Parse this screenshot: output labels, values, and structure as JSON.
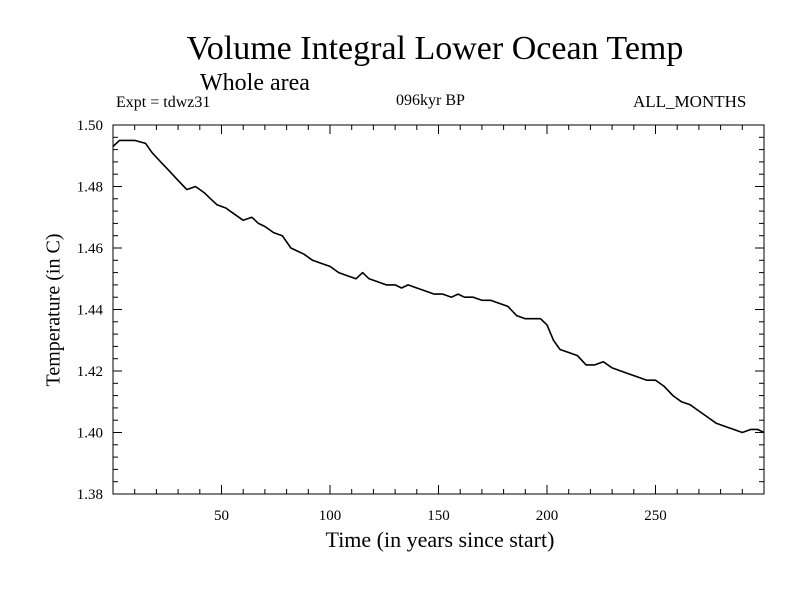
{
  "header": {
    "expt": "Expt = tdwz31",
    "period": "096kyr BP",
    "months": "ALL_MONTHS"
  },
  "chart_data": {
    "type": "line",
    "title": "Volume Integral Lower Ocean Temp",
    "subtitle": "Whole area",
    "xlabel": "Time (in years since start)",
    "ylabel": "Temperature (in C)",
    "xlim": [
      0,
      300
    ],
    "ylim": [
      1.38,
      1.5
    ],
    "xticks": [
      50,
      100,
      150,
      200,
      250
    ],
    "yticks": [
      1.38,
      1.4,
      1.42,
      1.44,
      1.46,
      1.48,
      1.5
    ],
    "ytick_labels": [
      "1.38",
      "1.40",
      "1.42",
      "1.44",
      "1.46",
      "1.48",
      "1.50"
    ],
    "grid": false,
    "series": [
      {
        "name": "Volume integral lower ocean temperature",
        "x": [
          0,
          3,
          6,
          10,
          15,
          18,
          22,
          26,
          30,
          34,
          38,
          42,
          45,
          48,
          52,
          56,
          60,
          64,
          67,
          70,
          74,
          78,
          82,
          85,
          88,
          92,
          96,
          100,
          104,
          108,
          112,
          115,
          118,
          122,
          126,
          130,
          133,
          136,
          140,
          144,
          148,
          152,
          156,
          159,
          162,
          166,
          170,
          174,
          178,
          182,
          186,
          190,
          194,
          197,
          200,
          203,
          206,
          210,
          214,
          218,
          222,
          226,
          230,
          234,
          238,
          242,
          246,
          250,
          254,
          258,
          262,
          266,
          270,
          274,
          278,
          282,
          286,
          290,
          294,
          297,
          300
        ],
        "y": [
          1.493,
          1.495,
          1.495,
          1.495,
          1.494,
          1.491,
          1.488,
          1.485,
          1.482,
          1.479,
          1.48,
          1.478,
          1.476,
          1.474,
          1.473,
          1.471,
          1.469,
          1.47,
          1.468,
          1.467,
          1.465,
          1.464,
          1.46,
          1.459,
          1.458,
          1.456,
          1.455,
          1.454,
          1.452,
          1.451,
          1.45,
          1.452,
          1.45,
          1.449,
          1.448,
          1.448,
          1.447,
          1.448,
          1.447,
          1.446,
          1.445,
          1.445,
          1.444,
          1.445,
          1.444,
          1.444,
          1.443,
          1.443,
          1.442,
          1.441,
          1.438,
          1.437,
          1.437,
          1.437,
          1.435,
          1.43,
          1.427,
          1.426,
          1.425,
          1.422,
          1.422,
          1.423,
          1.421,
          1.42,
          1.419,
          1.418,
          1.417,
          1.417,
          1.415,
          1.412,
          1.41,
          1.409,
          1.407,
          1.405,
          1.403,
          1.402,
          1.401,
          1.4,
          1.401,
          1.401,
          1.4
        ]
      }
    ]
  }
}
